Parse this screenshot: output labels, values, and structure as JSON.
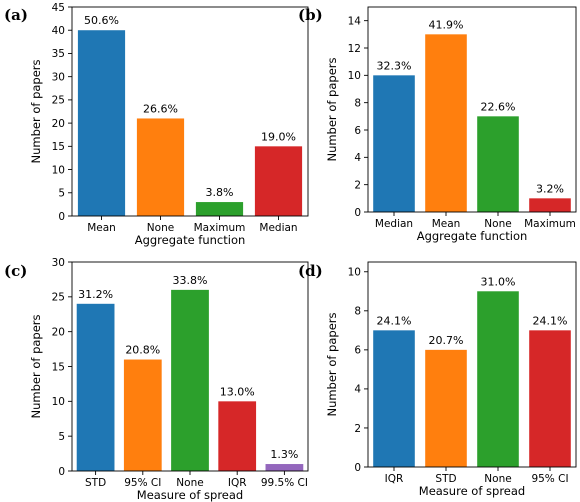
{
  "chart_data": [
    {
      "type": "bar",
      "panel_label": "(a)",
      "categories": [
        "Mean",
        "None",
        "Maximum",
        "Median"
      ],
      "values": [
        40,
        21,
        3,
        15
      ],
      "bar_labels": [
        "50.6%",
        "26.6%",
        "3.8%",
        "19.0%"
      ],
      "colors": [
        "#1f77b4",
        "#ff7f0e",
        "#2ca02c",
        "#d62728"
      ],
      "xlabel": "Aggregate function",
      "ylabel": "Number of papers",
      "ylim": [
        0,
        45
      ],
      "yticks": [
        0,
        5,
        10,
        15,
        20,
        25,
        30,
        35,
        40,
        45
      ],
      "grid": false
    },
    {
      "type": "bar",
      "panel_label": "(b)",
      "categories": [
        "Median",
        "Mean",
        "None",
        "Maximum"
      ],
      "values": [
        10,
        13,
        7,
        1
      ],
      "bar_labels": [
        "32.3%",
        "41.9%",
        "22.6%",
        "3.2%"
      ],
      "colors": [
        "#1f77b4",
        "#ff7f0e",
        "#2ca02c",
        "#d62728"
      ],
      "xlabel": "Aggregate function",
      "ylabel": "Number of papers",
      "ylim": [
        0,
        15
      ],
      "yticks": [
        0,
        2,
        4,
        6,
        8,
        10,
        12,
        14
      ],
      "grid": false
    },
    {
      "type": "bar",
      "panel_label": "(c)",
      "categories": [
        "STD",
        "95% CI",
        "None",
        "IQR",
        "99.5% CI"
      ],
      "values": [
        24,
        16,
        26,
        10,
        1
      ],
      "bar_labels": [
        "31.2%",
        "20.8%",
        "33.8%",
        "13.0%",
        "1.3%"
      ],
      "colors": [
        "#1f77b4",
        "#ff7f0e",
        "#2ca02c",
        "#d62728",
        "#9467bd"
      ],
      "xlabel": "Measure of spread",
      "ylabel": "Number of papers",
      "ylim": [
        0,
        30
      ],
      "yticks": [
        0,
        5,
        10,
        15,
        20,
        25,
        30
      ],
      "grid": false
    },
    {
      "type": "bar",
      "panel_label": "(d)",
      "categories": [
        "IQR",
        "STD",
        "None",
        "95% CI"
      ],
      "values": [
        7,
        6,
        9,
        7
      ],
      "bar_labels": [
        "24.1%",
        "20.7%",
        "31.0%",
        "24.1%"
      ],
      "colors": [
        "#1f77b4",
        "#ff7f0e",
        "#2ca02c",
        "#d62728"
      ],
      "xlabel": "Measure of spread",
      "ylabel": "Number of papers",
      "ylim": [
        0,
        10.5
      ],
      "yticks": [
        0,
        2,
        4,
        6,
        8,
        10
      ],
      "grid": false
    }
  ]
}
